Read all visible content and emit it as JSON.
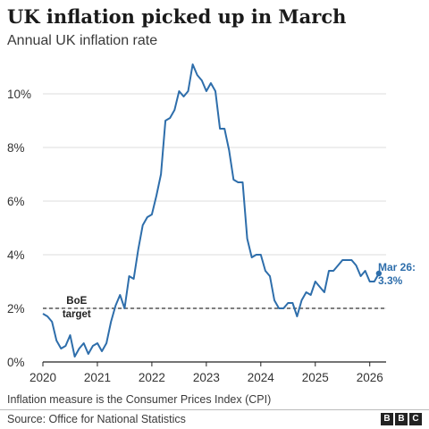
{
  "header": {
    "title": "UK inflation picked up in March",
    "subtitle": "Annual UK inflation rate"
  },
  "footer": {
    "note": "Inflation measure is the Consumer Prices Index (CPI)",
    "source": "Source: Office for National Statistics",
    "logo_letters": [
      "B",
      "B",
      "C"
    ]
  },
  "colors": {
    "line": "#2e6eab",
    "axis": "#222222",
    "grid": "#dcdcdc",
    "target": "#333333"
  },
  "chart_data": {
    "type": "line",
    "title": "UK inflation picked up in March",
    "subtitle": "Annual UK inflation rate",
    "xlabel": "",
    "ylabel": "",
    "xlim": [
      2020.0,
      2026.3
    ],
    "ylim": [
      0,
      11.5
    ],
    "grid": true,
    "x_ticks": [
      2020,
      2021,
      2022,
      2023,
      2024,
      2025,
      2026
    ],
    "x_tick_labels": [
      "2020",
      "2021",
      "2022",
      "2023",
      "2024",
      "2025",
      "2026"
    ],
    "y_ticks": [
      0,
      2,
      4,
      6,
      8,
      10
    ],
    "y_tick_labels": [
      "0%",
      "2%",
      "4%",
      "6%",
      "8%",
      "10%"
    ],
    "reference_line": {
      "value": 2.0,
      "label_line1": "BoE",
      "label_line2": "target"
    },
    "end_label": {
      "line1": "Mar 26:",
      "line2": "3.3%",
      "value": 3.3
    },
    "series": [
      {
        "start": "2020-01",
        "frequency": "monthly",
        "values": [
          1.8,
          1.7,
          1.5,
          0.8,
          0.5,
          0.6,
          1.0,
          0.2,
          0.5,
          0.7,
          0.3,
          0.6,
          0.7,
          0.4,
          0.7,
          1.5,
          2.1,
          2.5,
          2.0,
          3.2,
          3.1,
          4.2,
          5.1,
          5.4,
          5.5,
          6.2,
          7.0,
          9.0,
          9.1,
          9.4,
          10.1,
          9.9,
          10.1,
          11.1,
          10.7,
          10.5,
          10.1,
          10.4,
          10.1,
          8.7,
          8.7,
          7.9,
          6.8,
          6.7,
          6.7,
          4.6,
          3.9,
          4.0,
          4.0,
          3.4,
          3.2,
          2.3,
          2.0,
          2.0,
          2.2,
          2.2,
          1.7,
          2.3,
          2.6,
          2.5,
          3.0,
          2.8,
          2.6,
          3.4,
          3.4,
          3.6,
          3.8,
          3.8,
          3.8,
          3.6,
          3.2,
          3.4,
          3.0,
          3.0,
          3.3
        ]
      }
    ]
  }
}
